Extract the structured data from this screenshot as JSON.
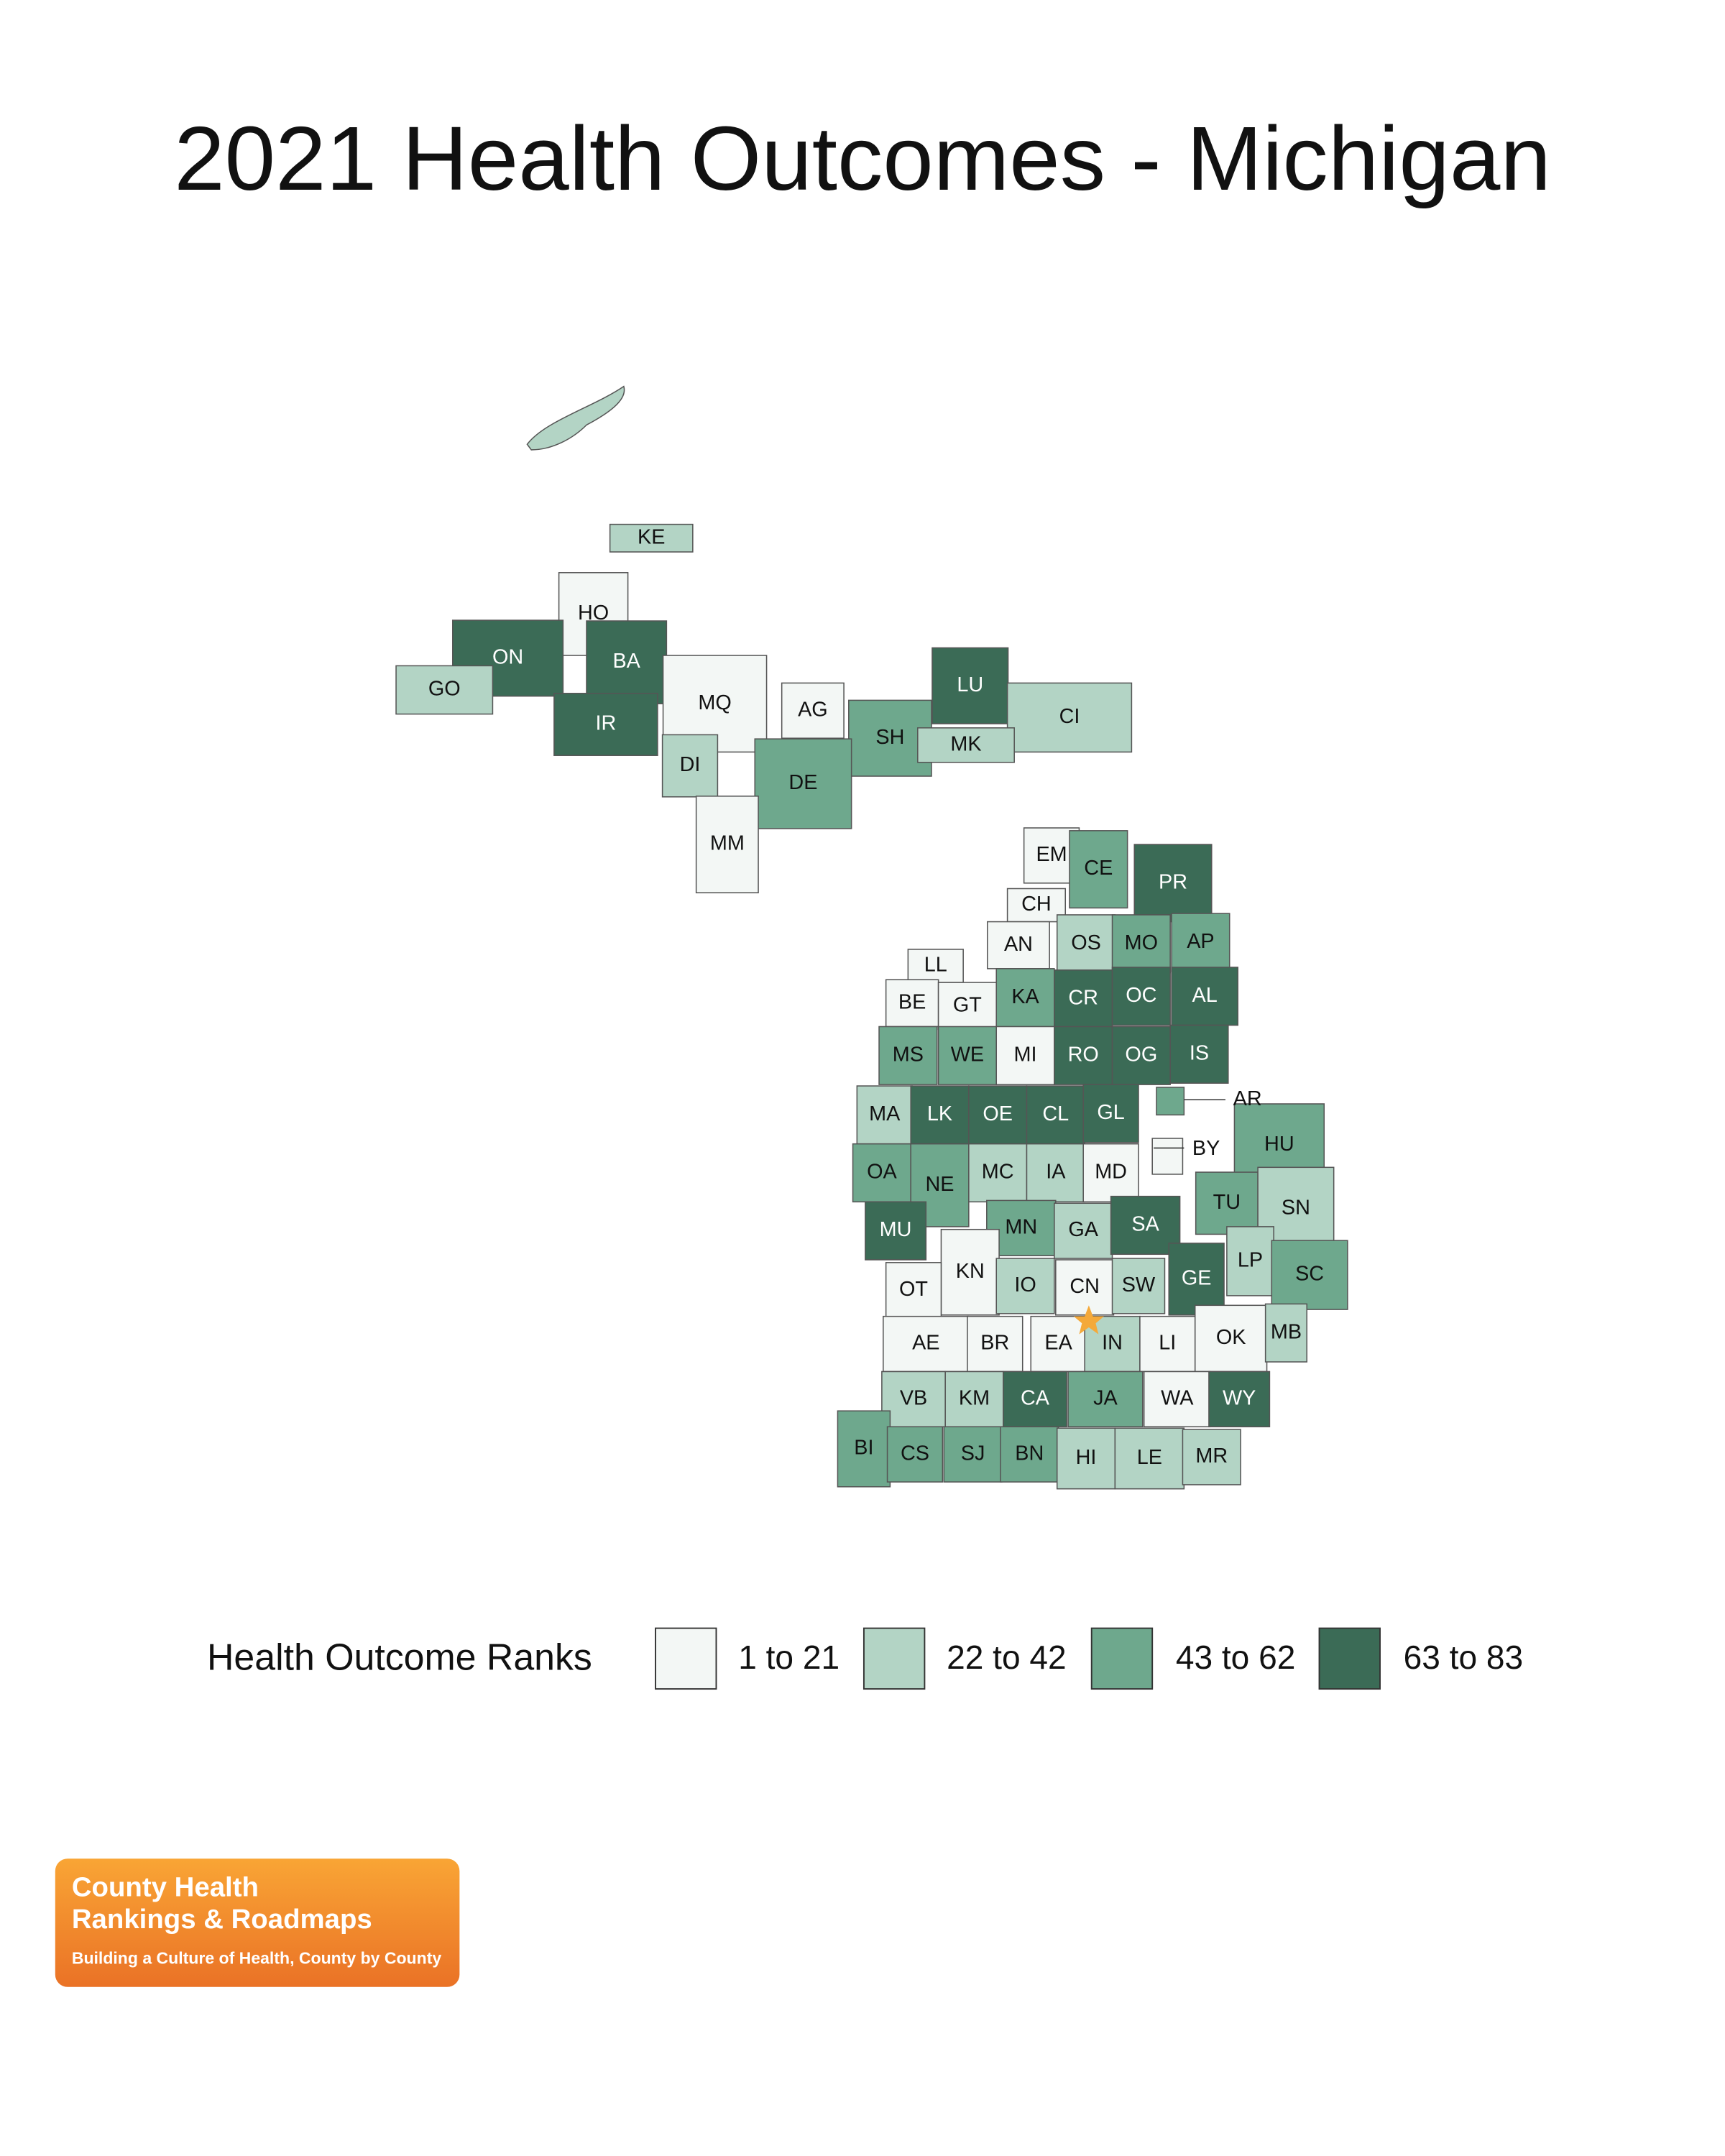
{
  "title": "2021 Health Outcomes - Michigan",
  "legend": {
    "title": "Health Outcome Ranks",
    "items": [
      {
        "label": "1 to 21",
        "color": "#f3f7f5"
      },
      {
        "label": "22 to 42",
        "color": "#b3d4c5"
      },
      {
        "label": "43 to 62",
        "color": "#6ea88d"
      },
      {
        "label": "63 to 83",
        "color": "#3b6b56"
      }
    ]
  },
  "counties": [
    {
      "label": "KE",
      "class": 1
    },
    {
      "label": "HO",
      "class": 0
    },
    {
      "label": "ON",
      "class": 3
    },
    {
      "label": "BA",
      "class": 3
    },
    {
      "label": "GO",
      "class": 1
    },
    {
      "label": "IR",
      "class": 3
    },
    {
      "label": "MQ",
      "class": 0
    },
    {
      "label": "AG",
      "class": 0
    },
    {
      "label": "SH",
      "class": 2
    },
    {
      "label": "LU",
      "class": 3
    },
    {
      "label": "CI",
      "class": 1
    },
    {
      "label": "MK",
      "class": 1
    },
    {
      "label": "DI",
      "class": 1
    },
    {
      "label": "DE",
      "class": 2
    },
    {
      "label": "MM",
      "class": 0
    },
    {
      "label": "EM",
      "class": 0
    },
    {
      "label": "CE",
      "class": 2
    },
    {
      "label": "PR",
      "class": 3
    },
    {
      "label": "CH",
      "class": 0
    },
    {
      "label": "AN",
      "class": 0
    },
    {
      "label": "OS",
      "class": 1
    },
    {
      "label": "MO",
      "class": 2
    },
    {
      "label": "AP",
      "class": 2
    },
    {
      "label": "LL",
      "class": 0
    },
    {
      "label": "BE",
      "class": 0
    },
    {
      "label": "GT",
      "class": 0
    },
    {
      "label": "KA",
      "class": 2
    },
    {
      "label": "CR",
      "class": 3
    },
    {
      "label": "OC",
      "class": 3
    },
    {
      "label": "AL",
      "class": 3
    },
    {
      "label": "MS",
      "class": 2
    },
    {
      "label": "WE",
      "class": 2
    },
    {
      "label": "MI",
      "class": 0
    },
    {
      "label": "RO",
      "class": 3
    },
    {
      "label": "OG",
      "class": 3
    },
    {
      "label": "IS",
      "class": 3
    },
    {
      "label": "AR",
      "class": 2
    },
    {
      "label": "MA",
      "class": 1
    },
    {
      "label": "LK",
      "class": 3
    },
    {
      "label": "OE",
      "class": 3
    },
    {
      "label": "CL",
      "class": 3
    },
    {
      "label": "GL",
      "class": 3
    },
    {
      "label": "BY",
      "class": 0
    },
    {
      "label": "HU",
      "class": 2
    },
    {
      "label": "OA",
      "class": 2
    },
    {
      "label": "NE",
      "class": 2
    },
    {
      "label": "MC",
      "class": 1
    },
    {
      "label": "IA",
      "class": 1
    },
    {
      "label": "MD",
      "class": 0
    },
    {
      "label": "TU",
      "class": 2
    },
    {
      "label": "SN",
      "class": 1
    },
    {
      "label": "MU",
      "class": 3
    },
    {
      "label": "MN",
      "class": 2
    },
    {
      "label": "GA",
      "class": 1
    },
    {
      "label": "SA",
      "class": 3
    },
    {
      "label": "KN",
      "class": 0
    },
    {
      "label": "LP",
      "class": 1
    },
    {
      "label": "OT",
      "class": 0
    },
    {
      "label": "IO",
      "class": 1
    },
    {
      "label": "CN",
      "class": 0
    },
    {
      "label": "SW",
      "class": 1
    },
    {
      "label": "GE",
      "class": 3
    },
    {
      "label": "SC",
      "class": 2
    },
    {
      "label": "AE",
      "class": 0
    },
    {
      "label": "BR",
      "class": 0
    },
    {
      "label": "EA",
      "class": 0
    },
    {
      "label": "IN",
      "class": 1
    },
    {
      "label": "LI",
      "class": 0
    },
    {
      "label": "OK",
      "class": 0
    },
    {
      "label": "MB",
      "class": 1
    },
    {
      "label": "VB",
      "class": 1
    },
    {
      "label": "KM",
      "class": 1
    },
    {
      "label": "CA",
      "class": 3
    },
    {
      "label": "JA",
      "class": 2
    },
    {
      "label": "WA",
      "class": 0
    },
    {
      "label": "WY",
      "class": 3
    },
    {
      "label": "BI",
      "class": 2
    },
    {
      "label": "CS",
      "class": 2
    },
    {
      "label": "SJ",
      "class": 2
    },
    {
      "label": "BN",
      "class": 2
    },
    {
      "label": "HI",
      "class": 1
    },
    {
      "label": "LE",
      "class": 1
    },
    {
      "label": "MR",
      "class": 1
    }
  ],
  "logo": {
    "line1": "County Health",
    "line2": "Rankings & Roadmaps",
    "tagline": "Building a Culture of Health, County by County"
  }
}
